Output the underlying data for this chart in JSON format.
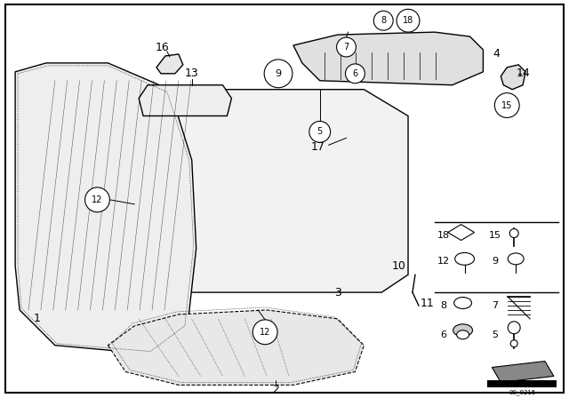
{
  "bg_color": "#ffffff",
  "line_color": "#000000",
  "fig_width": 6.4,
  "fig_height": 4.48,
  "dpi": 100
}
